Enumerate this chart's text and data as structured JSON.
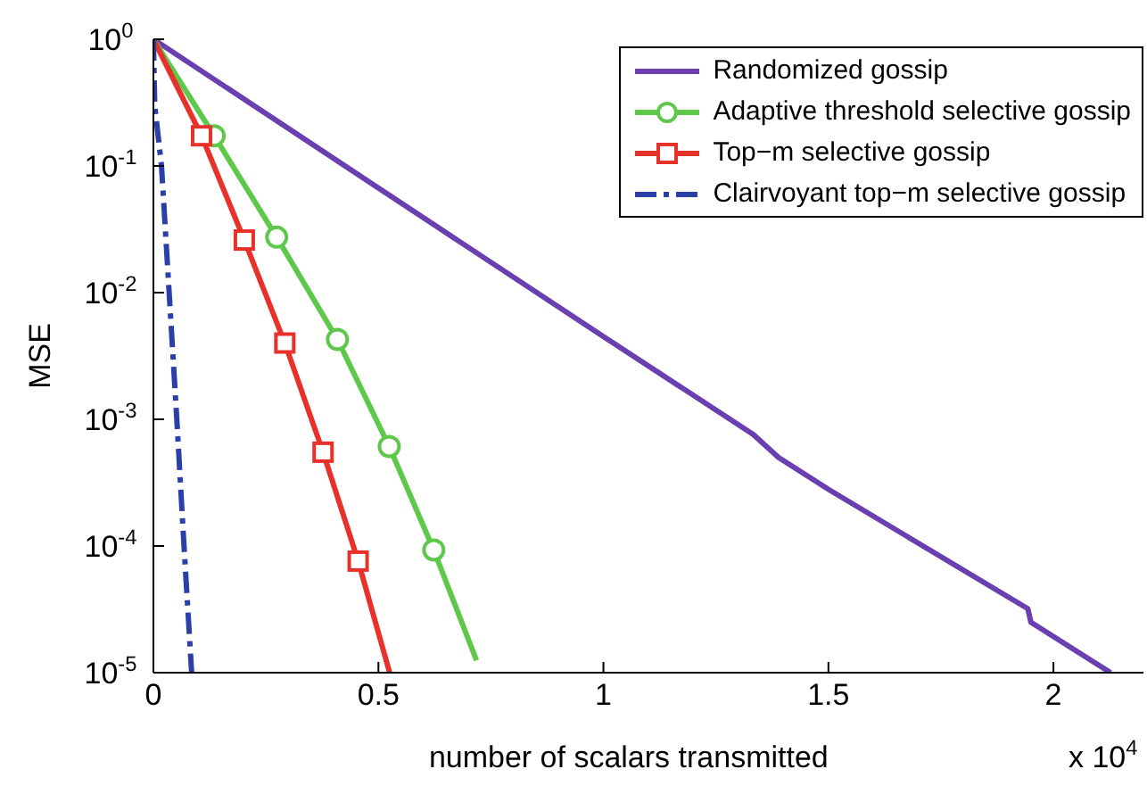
{
  "chart_data": {
    "type": "line",
    "xlabel": "number of scalars transmitted",
    "ylabel": "MSE",
    "log": "y",
    "xlim": [
      0,
      2.2
    ],
    "xticks": [
      0,
      0.5,
      1,
      1.5,
      2
    ],
    "ylim": [
      1e-05,
      1
    ],
    "yticks": [
      {
        "value": 1e-05,
        "label": "10$^{-5}$"
      },
      {
        "value": 0.0001,
        "label": "10$^{-4}$"
      },
      {
        "value": 0.001,
        "label": "10$^{-3}$"
      },
      {
        "value": 0.01,
        "label": "10$^{-2}$"
      },
      {
        "value": 0.1,
        "label": "10$^{-1}$"
      },
      {
        "value": 1,
        "label": "10$^{0}$"
      }
    ],
    "grid": false,
    "legend": "top right",
    "annotations": [
      "x 10$^{4}$"
    ],
    "series": [
      {
        "name": "Randomized gossip",
        "color": "#6a3fb0",
        "marker": "none",
        "line_style": "solid",
        "x": [
          0,
          0.5,
          1,
          1.333,
          1.389,
          1.5,
          1.943,
          1.95,
          2.127
        ],
        "values": [
          1,
          0.067,
          0.0045,
          0.00076,
          0.0005,
          0.00028,
          3.2e-05,
          2.5e-05,
          1e-05
        ]
      },
      {
        "name": "Adaptive threshold selective gossip",
        "color": "#5ec84a",
        "marker": "circle",
        "line_style": "solid",
        "x": [
          0,
          0.135,
          0.274,
          0.409,
          0.524,
          0.623,
          0.718
        ],
        "values": [
          1,
          0.173,
          0.0274,
          0.00427,
          0.00061,
          9.3e-05,
          1.25e-05
        ]
      },
      {
        "name": "Top−m selective gossip",
        "color": "#e8312a",
        "marker": "square",
        "line_style": "solid",
        "x": [
          0,
          0.107,
          0.202,
          0.292,
          0.377,
          0.455,
          0.525
        ],
        "values": [
          1,
          0.173,
          0.026,
          0.004,
          0.00055,
          7.6e-05,
          1e-05
        ]
      },
      {
        "name": "Clairvoyant top−m selective gossip",
        "color": "#2b3fa8",
        "marker": "none",
        "line_style": "dashed",
        "x": [
          0,
          0.003,
          0.018,
          0.035,
          0.052,
          0.068,
          0.085
        ],
        "values": [
          1,
          0.3,
          0.1,
          0.01,
          0.001,
          0.0001,
          1e-05
        ]
      }
    ]
  }
}
